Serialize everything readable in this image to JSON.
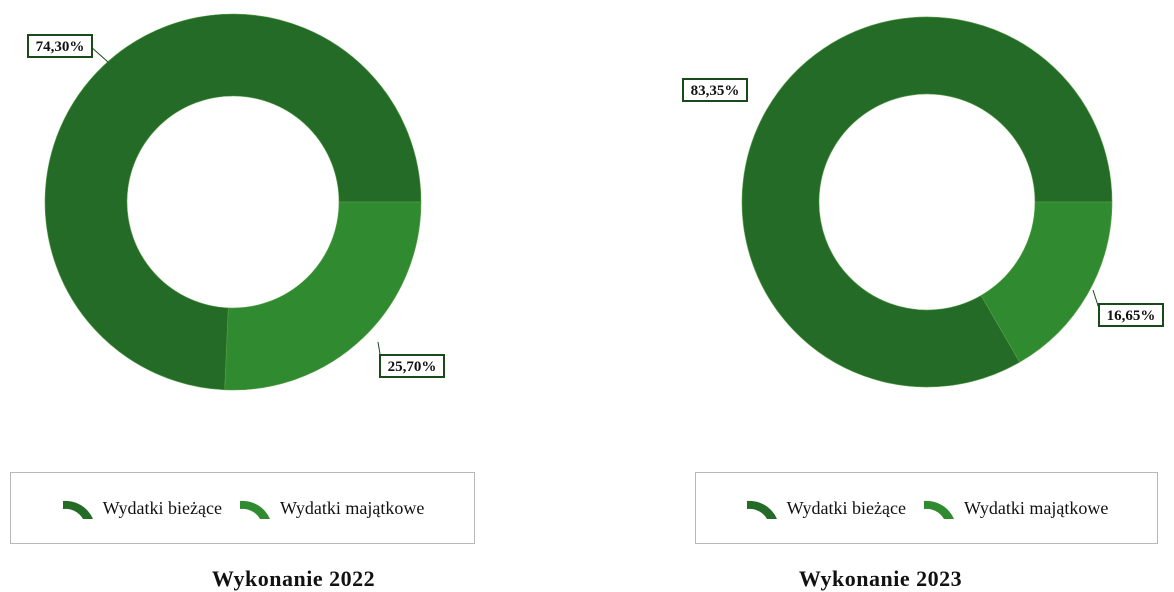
{
  "colors": {
    "biezace": "#236b26",
    "majatkowe": "#2f8a30",
    "label_border": "#1a4a1a"
  },
  "legend": {
    "biezace": "Wydatki bieżące",
    "majatkowe": "Wydatki majątkowe"
  },
  "chart_data": [
    {
      "type": "pie",
      "donut": true,
      "title": "Wykonanie 2022",
      "series": [
        {
          "name": "Wydatki bieżące",
          "value": 74.3,
          "label": "74,30%"
        },
        {
          "name": "Wydatki majątkowe",
          "value": 25.7,
          "label": "25,70%"
        }
      ],
      "legend_position": "bottom"
    },
    {
      "type": "pie",
      "donut": true,
      "title": "Wykonanie 2023",
      "series": [
        {
          "name": "Wydatki bieżące",
          "value": 83.35,
          "label": "83,35%"
        },
        {
          "name": "Wydatki majątkowe",
          "value": 16.65,
          "label": "16,65%"
        }
      ],
      "legend_position": "bottom"
    }
  ]
}
